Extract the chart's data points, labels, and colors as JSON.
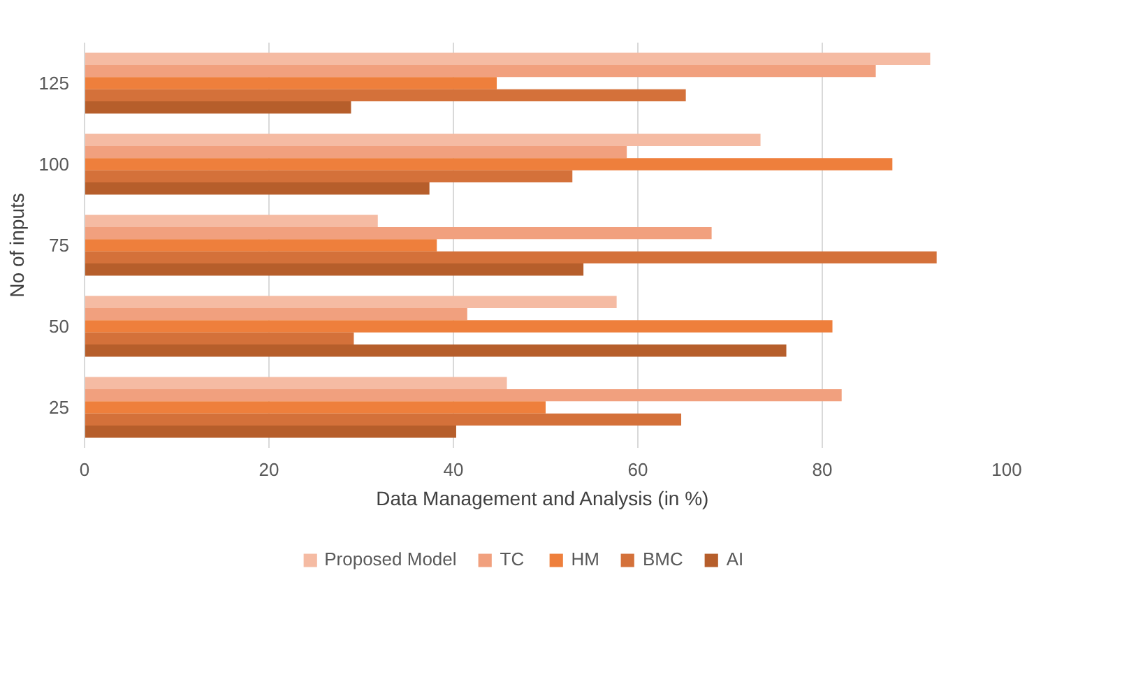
{
  "chart_data": {
    "type": "bar",
    "orientation": "horizontal",
    "xlabel": "Data Management  and Analysis (in %)",
    "ylabel": "No of inputs",
    "categories": [
      "125",
      "100",
      "75",
      "50",
      "25"
    ],
    "series": [
      {
        "name": "Proposed Model",
        "color": "#f5bba3",
        "values": [
          91.7,
          73.3,
          31.8,
          57.7,
          45.8
        ]
      },
      {
        "name": "TC",
        "color": "#f1a07e",
        "values": [
          85.8,
          58.8,
          68,
          41.5,
          82.1
        ]
      },
      {
        "name": "HM",
        "color": "#ee7f3c",
        "values": [
          44.7,
          87.6,
          38.2,
          81.1,
          50
        ]
      },
      {
        "name": "BMC",
        "color": "#d4713a",
        "values": [
          65.2,
          52.9,
          92.4,
          29.2,
          64.7
        ]
      },
      {
        "name": "AI",
        "color": "#b65e2b",
        "values": [
          28.9,
          37.4,
          54.1,
          76.1,
          40.3
        ]
      }
    ],
    "xlim": [
      0,
      100
    ],
    "xticks": [
      0,
      20,
      40,
      60,
      80,
      100
    ],
    "grid": "x",
    "legend": "bottom"
  }
}
